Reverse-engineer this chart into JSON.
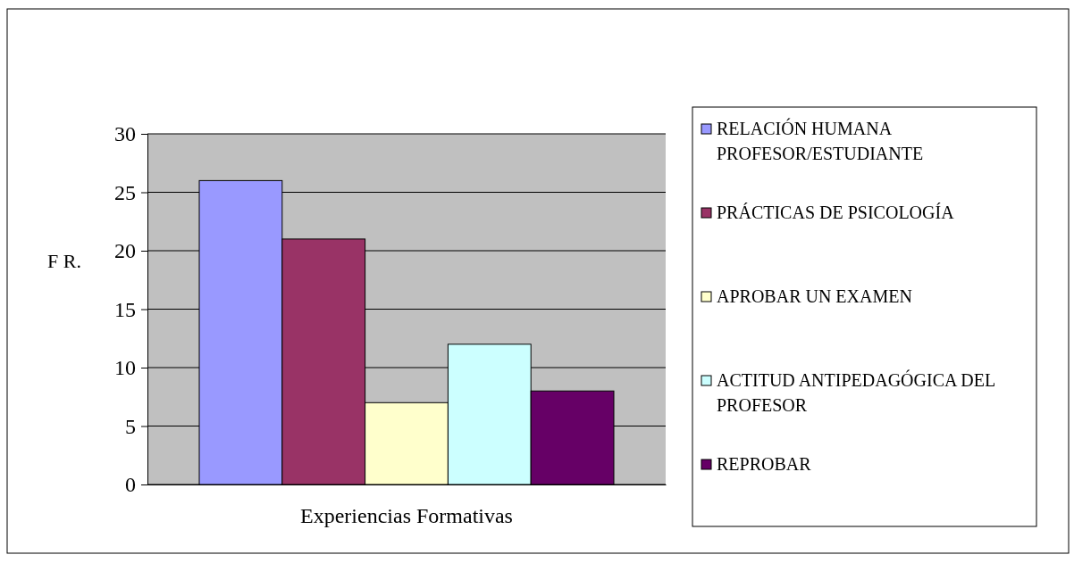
{
  "chart_data": {
    "type": "bar",
    "ylabel": "F R.",
    "categories": [
      "Experiencias Formativas"
    ],
    "series": [
      {
        "name": "RELACIÓN HUMANA PROFESOR/ESTUDIANTE",
        "color": "#9999ff",
        "values": [
          26
        ]
      },
      {
        "name": "PRÁCTICAS DE PSICOLOGÍA",
        "color": "#993366",
        "values": [
          21
        ]
      },
      {
        "name": "APROBAR UN EXAMEN",
        "color": "#ffffcc",
        "values": [
          7
        ]
      },
      {
        "name": "ACTITUD ANTIPEDAGÓGICA DEL PROFESOR",
        "color": "#ccffff",
        "values": [
          12
        ]
      },
      {
        "name": "REPROBAR",
        "color": "#660066",
        "values": [
          8
        ]
      }
    ],
    "ylim": [
      0,
      30
    ],
    "yticks": [
      0,
      5,
      10,
      15,
      20,
      25,
      30
    ],
    "grid": "y",
    "legend": "right"
  }
}
